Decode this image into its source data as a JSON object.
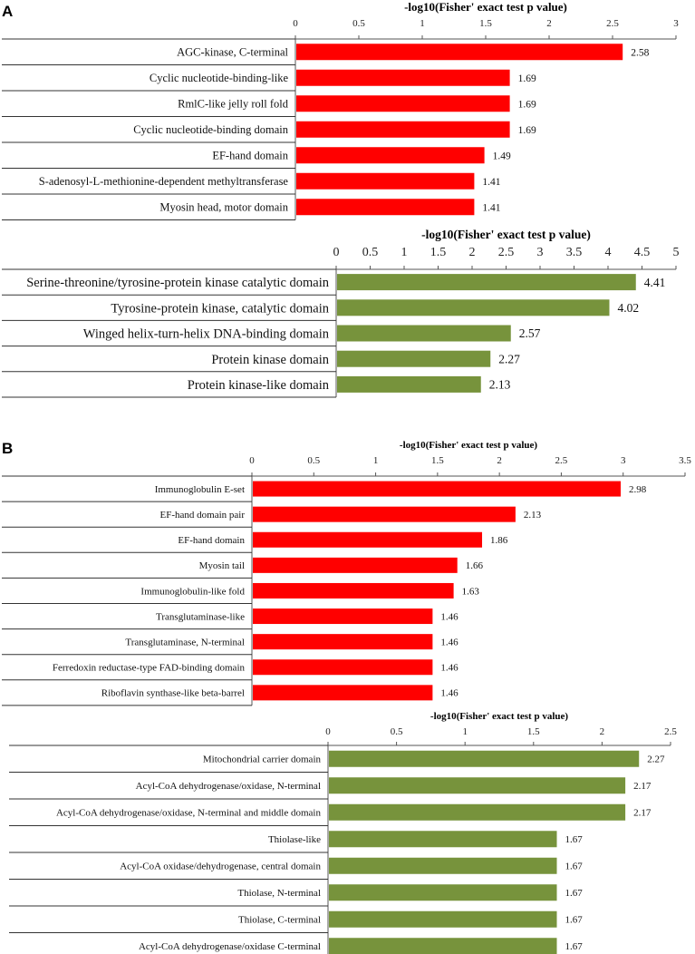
{
  "panels": [
    {
      "label": "A"
    },
    {
      "label": "B"
    }
  ],
  "chart_data": [
    {
      "type": "bar",
      "orientation": "horizontal",
      "panel": "A",
      "title": "-log10(Fisher' exact test p value)",
      "xlim": [
        0,
        3
      ],
      "xticks": [
        "0",
        "0.5",
        "1",
        "1.5",
        "2",
        "2.5",
        "3"
      ],
      "bar_color": "#ff0000",
      "categories": [
        "AGC-kinase, C-terminal",
        "Cyclic nucleotide-binding-like",
        "RmlC-like jelly roll fold",
        "Cyclic nucleotide-binding domain",
        "EF-hand domain",
        "S-adenosyl-L-methionine-dependent methyltransferase",
        "Myosin head, motor domain"
      ],
      "values": [
        2.58,
        1.69,
        1.69,
        1.69,
        1.49,
        1.41,
        1.41
      ]
    },
    {
      "type": "bar",
      "orientation": "horizontal",
      "panel": "A",
      "title": "-log10(Fisher' exact test p value)",
      "xlim": [
        0,
        5
      ],
      "xticks": [
        "0",
        "0.5",
        "1",
        "1.5",
        "2",
        "2.5",
        "3",
        "3.5",
        "4",
        "4.5",
        "5"
      ],
      "bar_color": "#77933c",
      "categories": [
        "Serine-threonine/tyrosine-protein kinase catalytic domain",
        "Tyrosine-protein kinase, catalytic domain",
        "Winged helix-turn-helix DNA-binding domain",
        "Protein kinase domain",
        "Protein kinase-like domain"
      ],
      "values": [
        4.41,
        4.02,
        2.57,
        2.27,
        2.13
      ]
    },
    {
      "type": "bar",
      "orientation": "horizontal",
      "panel": "B",
      "title": "-log10(Fisher' exact test p value)",
      "xlim": [
        0,
        3.5
      ],
      "xticks": [
        "0",
        "0.5",
        "1",
        "1.5",
        "2",
        "2.5",
        "3",
        "3.5"
      ],
      "bar_color": "#ff0000",
      "categories": [
        "Immunoglobulin E-set",
        "EF-hand domain pair",
        "EF-hand domain",
        "Myosin tail",
        "Immunoglobulin-like fold",
        "Transglutaminase-like",
        "Transglutaminase, N-terminal",
        "Ferredoxin reductase-type FAD-binding domain",
        "Riboflavin synthase-like beta-barrel"
      ],
      "values": [
        2.98,
        2.13,
        1.86,
        1.66,
        1.63,
        1.46,
        1.46,
        1.46,
        1.46
      ]
    },
    {
      "type": "bar",
      "orientation": "horizontal",
      "panel": "B",
      "title": "-log10(Fisher' exact test p value)",
      "xlim": [
        0,
        2.5
      ],
      "xticks": [
        "0",
        "0.5",
        "1",
        "1.5",
        "2",
        "2.5"
      ],
      "bar_color": "#77933c",
      "categories": [
        "Mitochondrial carrier domain",
        "Acyl-CoA dehydrogenase/oxidase, N-terminal",
        "Acyl-CoA dehydrogenase/oxidase, N-terminal and middle domain",
        "Thiolase-like",
        "Acyl-CoA oxidase/dehydrogenase, central domain",
        "Thiolase, N-terminal",
        "Thiolase, C-terminal",
        "Acyl-CoA dehydrogenase/oxidase C-terminal"
      ],
      "values": [
        2.27,
        2.17,
        2.17,
        1.67,
        1.67,
        1.67,
        1.67,
        1.67
      ]
    }
  ]
}
